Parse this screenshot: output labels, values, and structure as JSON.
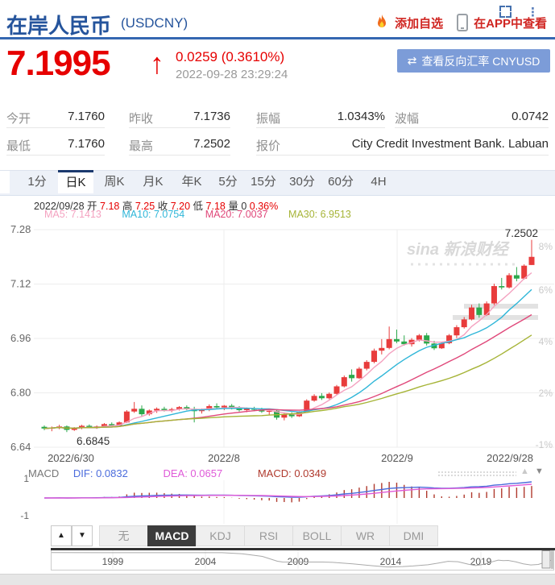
{
  "header": {
    "title_cn": "在岸人民币",
    "title_code": "(USDCNY)",
    "add_watch": "添加自选",
    "view_in_app": "在APP中查看"
  },
  "price": {
    "value": "7.1995",
    "arrow": "↑",
    "change": "0.0259 (0.3610%)",
    "timestamp": "2022-09-28 23:29:24",
    "reverse_btn": "查看反向汇率 CNYUSD",
    "reverse_icon": "⇄",
    "up_color": "#e60000"
  },
  "stats": {
    "today_open": {
      "label": "今开",
      "value": "7.1760"
    },
    "prev_close": {
      "label": "昨收",
      "value": "7.1736"
    },
    "amplitude": {
      "label": "振幅",
      "value": "1.0343%"
    },
    "wave": {
      "label": "波幅",
      "value": "0.0742"
    },
    "low": {
      "label": "最低",
      "value": "7.1760"
    },
    "high": {
      "label": "最高",
      "value": "7.2502"
    },
    "quote": {
      "label": "报价",
      "value": "City Credit Investment Bank. Labuan"
    }
  },
  "period_tabs": [
    {
      "label": "1分"
    },
    {
      "label": "日K"
    },
    {
      "label": "周K"
    },
    {
      "label": "月K"
    },
    {
      "label": "年K"
    },
    {
      "label": "5分"
    },
    {
      "label": "15分"
    },
    {
      "label": "30分"
    },
    {
      "label": "60分"
    },
    {
      "label": "4H"
    }
  ],
  "ohlc_info": {
    "date": "2022/09/28",
    "open_label": "开",
    "open": "7.18",
    "high_label": "高",
    "high": "7.25",
    "close_label": "收",
    "close": "7.20",
    "low_label": "低",
    "low": "7.18",
    "vol_label": "量",
    "vol": "0",
    "pct": "0.36%"
  },
  "ma_info": {
    "ma5": "MA5: 7.1413",
    "ma10": "MA10: 7.0754",
    "ma20": "MA20: 7.0037",
    "ma30": "MA30: 6.9513",
    "colors": {
      "ma5": "#f4a2c0",
      "ma10": "#2fb6d8",
      "ma20": "#e0487a",
      "ma30": "#a6b437"
    }
  },
  "macd_info": {
    "title": "MACD",
    "dif": "DIF: 0.0832",
    "dea": "DEA: 0.0657",
    "macd": "MACD: 0.0349",
    "axis_top": "1",
    "axis_bottom": "-1",
    "colors": {
      "dif": "#4b6cdc",
      "dea": "#df5ad8",
      "hist": "#b03a2e"
    }
  },
  "indicator_tabs": {
    "up": "▲",
    "down": "▼",
    "items": [
      {
        "label": "无"
      },
      {
        "label": "MACD"
      },
      {
        "label": "KDJ"
      },
      {
        "label": "RSI"
      },
      {
        "label": "BOLL"
      },
      {
        "label": "WR"
      },
      {
        "label": "DMI"
      }
    ]
  },
  "watermark": "sina 新浪财经",
  "chart_data": [
    {
      "type": "candlestick",
      "ylim": [
        6.64,
        7.28
      ],
      "yticks": [
        7.28,
        7.12,
        6.96,
        6.8,
        6.64
      ],
      "right_pct_labels": [
        {
          "label": "8%",
          "y": 306
        },
        {
          "label": "6%",
          "y": 360
        },
        {
          "label": "4%",
          "y": 424
        },
        {
          "label": "2%",
          "y": 488
        },
        {
          "label": "-1%",
          "y": 552
        }
      ],
      "x_ticks": [
        {
          "label": "2022/6/30",
          "x": 88
        },
        {
          "label": "2022/8",
          "x": 278
        },
        {
          "label": "2022/9",
          "x": 493
        },
        {
          "label": "2022/9/28",
          "x": 633
        }
      ],
      "grid_x": [
        278,
        493
      ],
      "high_label": "7.2502",
      "low_label": "6.6845",
      "up_color": "#e83c3c",
      "down_color": "#2ca94c",
      "candles_ohlc": [
        [
          6.7,
          6.704,
          6.69,
          6.695
        ],
        [
          6.695,
          6.701,
          6.687,
          6.698
        ],
        [
          6.698,
          6.706,
          6.693,
          6.701
        ],
        [
          6.701,
          6.704,
          6.6845,
          6.691
        ],
        [
          6.691,
          6.699,
          6.688,
          6.696
        ],
        [
          6.696,
          6.706,
          6.693,
          6.703
        ],
        [
          6.703,
          6.707,
          6.696,
          6.699
        ],
        [
          6.699,
          6.704,
          6.694,
          6.701
        ],
        [
          6.701,
          6.711,
          6.698,
          6.708
        ],
        [
          6.708,
          6.713,
          6.701,
          6.704
        ],
        [
          6.704,
          6.716,
          6.701,
          6.713
        ],
        [
          6.713,
          6.749,
          6.711,
          6.745
        ],
        [
          6.745,
          6.773,
          6.741,
          6.753
        ],
        [
          6.753,
          6.763,
          6.731,
          6.737
        ],
        [
          6.737,
          6.751,
          6.733,
          6.748
        ],
        [
          6.748,
          6.757,
          6.741,
          6.753
        ],
        [
          6.753,
          6.759,
          6.745,
          6.749
        ],
        [
          6.749,
          6.756,
          6.743,
          6.752
        ],
        [
          6.752,
          6.761,
          6.748,
          6.758
        ],
        [
          6.758,
          6.763,
          6.749,
          6.753
        ],
        [
          6.753,
          6.759,
          6.713,
          6.746
        ],
        [
          6.746,
          6.754,
          6.739,
          6.75
        ],
        [
          6.75,
          6.766,
          6.746,
          6.761
        ],
        [
          6.761,
          6.769,
          6.753,
          6.757
        ],
        [
          6.757,
          6.764,
          6.749,
          6.762
        ],
        [
          6.762,
          6.767,
          6.751,
          6.755
        ],
        [
          6.755,
          6.761,
          6.745,
          6.749
        ],
        [
          6.749,
          6.757,
          6.743,
          6.753
        ],
        [
          6.753,
          6.759,
          6.746,
          6.75
        ],
        [
          6.75,
          6.756,
          6.741,
          6.745
        ],
        [
          6.745,
          6.751,
          6.736,
          6.747
        ],
        [
          6.747,
          6.749,
          6.721,
          6.727
        ],
        [
          6.727,
          6.741,
          6.719,
          6.737
        ],
        [
          6.737,
          6.743,
          6.726,
          6.731
        ],
        [
          6.731,
          6.746,
          6.729,
          6.743
        ],
        [
          6.743,
          6.781,
          6.741,
          6.777
        ],
        [
          6.777,
          6.796,
          6.774,
          6.791
        ],
        [
          6.791,
          6.799,
          6.779,
          6.784
        ],
        [
          6.784,
          6.801,
          6.781,
          6.797
        ],
        [
          6.797,
          6.823,
          6.794,
          6.819
        ],
        [
          6.819,
          6.851,
          6.816,
          6.846
        ],
        [
          6.853,
          6.869,
          6.833,
          6.843
        ],
        [
          6.843,
          6.876,
          6.841,
          6.871
        ],
        [
          6.871,
          6.896,
          6.866,
          6.891
        ],
        [
          6.891,
          6.93,
          6.887,
          6.924
        ],
        [
          6.924,
          6.958,
          6.913,
          6.932
        ],
        [
          6.932,
          6.995,
          6.928,
          6.958
        ],
        [
          6.958,
          6.986,
          6.946,
          6.951
        ],
        [
          6.951,
          6.969,
          6.939,
          6.943
        ],
        [
          6.943,
          6.961,
          6.936,
          6.956
        ],
        [
          6.956,
          6.973,
          6.951,
          6.969
        ],
        [
          6.969,
          6.976,
          6.939,
          6.945
        ],
        [
          6.945,
          6.953,
          6.926,
          6.931
        ],
        [
          6.931,
          6.949,
          6.929,
          6.946
        ],
        [
          6.946,
          6.973,
          6.943,
          6.969
        ],
        [
          6.969,
          6.999,
          6.961,
          6.993
        ],
        [
          6.993,
          7.023,
          6.989,
          7.016
        ],
        [
          7.016,
          7.059,
          7.013,
          7.051
        ],
        [
          7.051,
          7.063,
          7.021,
          7.029
        ],
        [
          7.029,
          7.069,
          7.026,
          7.063
        ],
        [
          7.063,
          7.121,
          7.058,
          7.114
        ],
        [
          7.114,
          7.138,
          7.104,
          7.11
        ],
        [
          7.11,
          7.152,
          7.107,
          7.146
        ],
        [
          7.146,
          7.17,
          7.128,
          7.136
        ],
        [
          7.136,
          7.178,
          7.133,
          7.174
        ],
        [
          7.176,
          7.2502,
          7.176,
          7.2
        ]
      ],
      "gap_bars": [
        {
          "x": 576,
          "y": 377,
          "w": 92,
          "h": 6
        },
        {
          "x": 562,
          "y": 391,
          "w": 106,
          "h": 6
        }
      ]
    },
    {
      "type": "macd",
      "axis_labels": [
        "1",
        "-1"
      ]
    },
    {
      "type": "line",
      "name": "history-minimap",
      "year_ticks": [
        {
          "label": "1999",
          "x": 140
        },
        {
          "label": "2004",
          "x": 255
        },
        {
          "label": "2009",
          "x": 370
        },
        {
          "label": "2014",
          "x": 485
        },
        {
          "label": "2019",
          "x": 597
        }
      ],
      "vrange": [
        5.95,
        8.45
      ],
      "points": [
        [
          0.0,
          8.29
        ],
        [
          0.34,
          8.28
        ],
        [
          0.38,
          8.1
        ],
        [
          0.42,
          7.7
        ],
        [
          0.45,
          6.95
        ],
        [
          0.46,
          6.84
        ],
        [
          0.54,
          6.83
        ],
        [
          0.56,
          6.78
        ],
        [
          0.6,
          6.55
        ],
        [
          0.64,
          6.25
        ],
        [
          0.67,
          6.06
        ],
        [
          0.7,
          6.12
        ],
        [
          0.72,
          6.21
        ],
        [
          0.75,
          6.4
        ],
        [
          0.77,
          6.65
        ],
        [
          0.79,
          6.94
        ],
        [
          0.81,
          6.88
        ],
        [
          0.83,
          6.5
        ],
        [
          0.845,
          6.28
        ],
        [
          0.86,
          6.45
        ],
        [
          0.875,
          6.8
        ],
        [
          0.89,
          7.12
        ],
        [
          0.9,
          7.05
        ],
        [
          0.91,
          7.08
        ],
        [
          0.925,
          6.85
        ],
        [
          0.94,
          6.55
        ],
        [
          0.955,
          6.38
        ],
        [
          0.97,
          6.45
        ],
        [
          0.98,
          6.7
        ],
        [
          0.99,
          6.95
        ],
        [
          1.0,
          7.22
        ]
      ]
    }
  ]
}
